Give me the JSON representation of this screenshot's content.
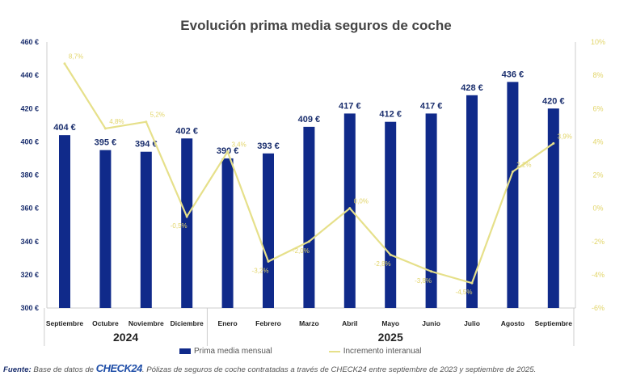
{
  "chart_data": {
    "type": "bar+line",
    "title": "Evolución prima media seguros de coche",
    "categories": [
      "Septiembre",
      "Octubre",
      "Noviembre",
      "Diciembre",
      "Enero",
      "Febrero",
      "Marzo",
      "Abril",
      "Mayo",
      "Junio",
      "Julio",
      "Agosto",
      "Septiembre"
    ],
    "year_groups": [
      {
        "label": "2024",
        "count": 4
      },
      {
        "label": "2025",
        "count": 9
      }
    ],
    "series": [
      {
        "name": "Prima media mensual",
        "type": "bar",
        "axis": "left",
        "color": "#102a8a",
        "values": [
          404,
          395,
          394,
          402,
          390,
          393,
          409,
          417,
          412,
          417,
          428,
          436,
          420
        ],
        "labels": [
          "404 €",
          "395 €",
          "394 €",
          "402 €",
          "390 €",
          "393 €",
          "409 €",
          "417 €",
          "412 €",
          "417 €",
          "428 €",
          "436 €",
          "420 €"
        ]
      },
      {
        "name": "Incremento interanual",
        "type": "line",
        "axis": "right",
        "color": "#e6e08a",
        "values": [
          8.7,
          4.8,
          5.2,
          -0.5,
          3.4,
          -3.2,
          -2.0,
          0.0,
          -2.8,
          -3.8,
          -4.5,
          2.2,
          3.9
        ],
        "labels": [
          "8,7%",
          "4,8%",
          "5,2%",
          "-0,5%",
          "3,4%",
          "-3,2%",
          "-2,0%",
          "0,0%",
          "-2,8%",
          "-3,8%",
          "-4,5%",
          "2,2%",
          "3,9%"
        ]
      }
    ],
    "left_axis": {
      "range": [
        300,
        460
      ],
      "ticks": [
        "300 €",
        "320 €",
        "340 €",
        "360 €",
        "380 €",
        "400 €",
        "420 €",
        "440 €",
        "460 €"
      ]
    },
    "right_axis": {
      "range": [
        -6,
        10
      ],
      "ticks": [
        "-6%",
        "-4%",
        "-2%",
        "0%",
        "2%",
        "4%",
        "6%",
        "8%",
        "10%"
      ]
    },
    "grid": false,
    "legend_position": "bottom"
  },
  "footer": {
    "source_label": "Fuente:",
    "source_pre": "Base de datos de",
    "logo_text": "CHECK24",
    "source_post": ". Pólizas de seguros de coche contratadas a través de CHECK24 entre septiembre de 2023 y septiembre de 2025."
  }
}
